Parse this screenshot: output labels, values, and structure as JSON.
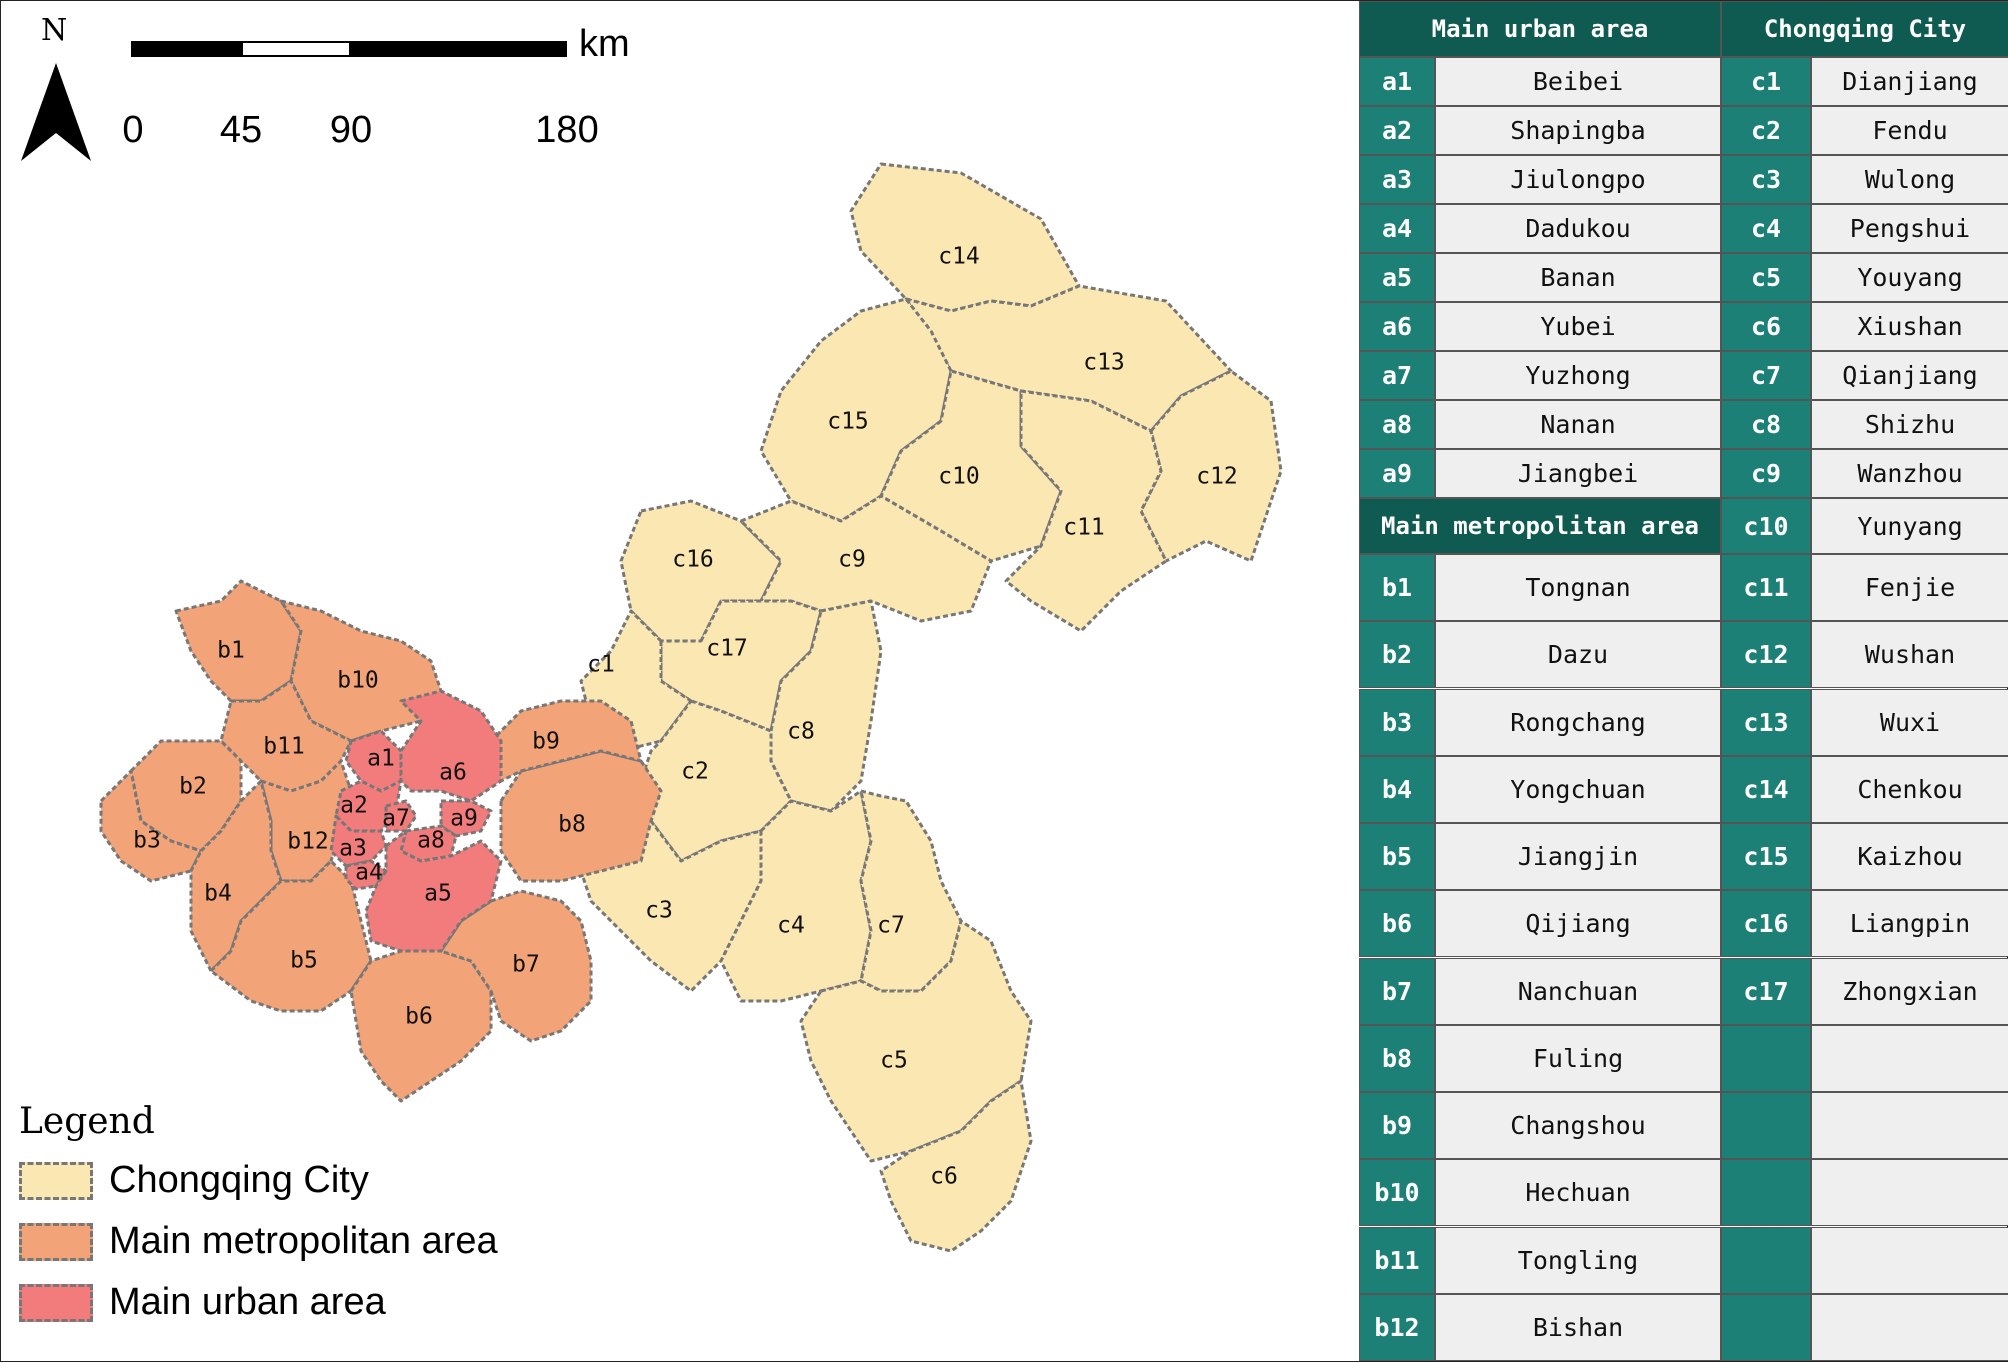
{
  "map": {
    "north_label": "N",
    "scale": {
      "unit": "km",
      "ticks": [
        "0",
        "45",
        "90",
        "180"
      ]
    },
    "legend": {
      "title": "Legend",
      "items": [
        {
          "label": "Chongqing City",
          "color": "#fbe7b2"
        },
        {
          "label": "Main metropolitan area",
          "color": "#f2a377"
        },
        {
          "label": "Main urban area",
          "color": "#f27c7c"
        }
      ]
    },
    "district_labels": {
      "a": [
        "a1",
        "a2",
        "a3",
        "a4",
        "a5",
        "a6",
        "a7",
        "a8",
        "a9"
      ],
      "b": [
        "b1",
        "b2",
        "b3",
        "b4",
        "b5",
        "b6",
        "b7",
        "b8",
        "b9",
        "b10",
        "b11",
        "b12"
      ],
      "c": [
        "c1",
        "c2",
        "c3",
        "c4",
        "c5",
        "c6",
        "c7",
        "c8",
        "c9",
        "c10",
        "c11",
        "c12",
        "c13",
        "c14",
        "c15",
        "c16",
        "c17"
      ]
    },
    "colors": {
      "chongqing_city": "#fbe7b2",
      "metropolitan": "#f2a377",
      "urban": "#f27c7c",
      "outline": "#777777"
    }
  },
  "table": {
    "header_urban": "Main urban area",
    "header_chongqing": "Chongqing City",
    "header_metropolitan": "Main metropolitan area",
    "urban": [
      {
        "id": "a1",
        "name": "Beibei"
      },
      {
        "id": "a2",
        "name": "Shapingba"
      },
      {
        "id": "a3",
        "name": "Jiulongpo"
      },
      {
        "id": "a4",
        "name": "Dadukou"
      },
      {
        "id": "a5",
        "name": "Banan"
      },
      {
        "id": "a6",
        "name": "Yubei"
      },
      {
        "id": "a7",
        "name": "Yuzhong"
      },
      {
        "id": "a8",
        "name": "Nanan"
      },
      {
        "id": "a9",
        "name": "Jiangbei"
      }
    ],
    "metropolitan": [
      {
        "id": "b1",
        "name": "Tongnan"
      },
      {
        "id": "b2",
        "name": "Dazu"
      },
      {
        "id": "b3",
        "name": "Rongchang"
      },
      {
        "id": "b4",
        "name": "Yongchuan"
      },
      {
        "id": "b5",
        "name": "Jiangjin"
      },
      {
        "id": "b6",
        "name": "Qijiang"
      },
      {
        "id": "b7",
        "name": "Nanchuan"
      },
      {
        "id": "b8",
        "name": "Fuling"
      },
      {
        "id": "b9",
        "name": "Changshou"
      },
      {
        "id": "b10",
        "name": "Hechuan"
      },
      {
        "id": "b11",
        "name": "Tongling"
      },
      {
        "id": "b12",
        "name": "Bishan"
      }
    ],
    "chongqing": [
      {
        "id": "c1",
        "name": "Dianjiang"
      },
      {
        "id": "c2",
        "name": "Fendu"
      },
      {
        "id": "c3",
        "name": "Wulong"
      },
      {
        "id": "c4",
        "name": "Pengshui"
      },
      {
        "id": "c5",
        "name": "Youyang"
      },
      {
        "id": "c6",
        "name": "Xiushan"
      },
      {
        "id": "c7",
        "name": "Qianjiang"
      },
      {
        "id": "c8",
        "name": "Shizhu"
      },
      {
        "id": "c9",
        "name": "Wanzhou"
      },
      {
        "id": "c10",
        "name": "Yunyang"
      },
      {
        "id": "c11",
        "name": "Fenjie"
      },
      {
        "id": "c12",
        "name": "Wushan"
      },
      {
        "id": "c13",
        "name": "Wuxi"
      },
      {
        "id": "c14",
        "name": "Chenkou"
      },
      {
        "id": "c15",
        "name": "Kaizhou"
      },
      {
        "id": "c16",
        "name": "Liangpin"
      },
      {
        "id": "c17",
        "name": "Zhongxian"
      }
    ]
  }
}
